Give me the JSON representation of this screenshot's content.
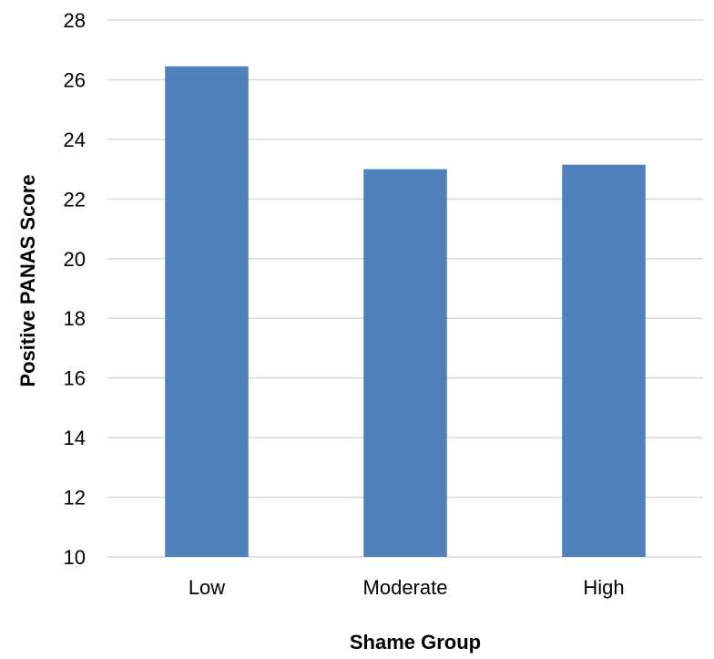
{
  "chart_data": {
    "type": "bar",
    "title": "",
    "xlabel": "Shame Group",
    "ylabel": "Positive PANAS Score",
    "categories": [
      "Low",
      "Moderate",
      "High"
    ],
    "values": [
      26.45,
      23.0,
      23.15
    ],
    "ylim": [
      10,
      28
    ],
    "yticks": [
      10,
      12,
      14,
      16,
      18,
      20,
      22,
      24,
      26,
      28
    ],
    "grid": true,
    "legend": "none",
    "bar_color": "#4f81bd",
    "grid_color": "#d9d9d9"
  }
}
